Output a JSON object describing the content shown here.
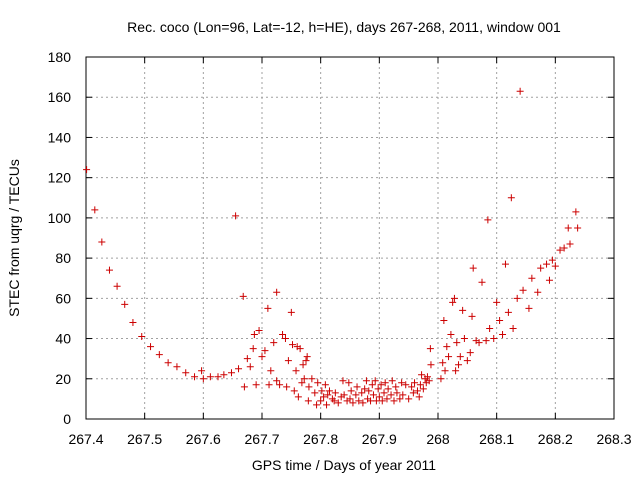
{
  "chart_data": {
    "type": "scatter",
    "title": "Rec. coco (Lon=96, Lat=-12, h=HE), days 267-268, 2011, window 001",
    "xlabel": "GPS time / Days of year 2011",
    "ylabel": "STEC from uqrg / TECUs",
    "xlim": [
      267.4,
      268.3
    ],
    "ylim": [
      0,
      180
    ],
    "xticks": [
      267.4,
      267.5,
      267.6,
      267.7,
      267.8,
      267.9,
      268,
      268.1,
      268.2,
      268.3
    ],
    "xtick_labels": [
      "267.4",
      "267.5",
      "267.6",
      "267.7",
      "267.8",
      "267.9",
      "268",
      "268.1",
      "268.2",
      "268.3"
    ],
    "yticks": [
      0,
      20,
      40,
      60,
      80,
      100,
      120,
      140,
      160,
      180
    ],
    "ytick_labels": [
      "0",
      "20",
      "40",
      "60",
      "80",
      "100",
      "120",
      "140",
      "160",
      "180"
    ],
    "grid": true,
    "marker": "+",
    "marker_color": "#cc0000",
    "points": [
      [
        267.401,
        124
      ],
      [
        267.415,
        104
      ],
      [
        267.427,
        88
      ],
      [
        267.44,
        74
      ],
      [
        267.453,
        66
      ],
      [
        267.466,
        57
      ],
      [
        267.48,
        48
      ],
      [
        267.495,
        41
      ],
      [
        267.51,
        36
      ],
      [
        267.525,
        32
      ],
      [
        267.54,
        28
      ],
      [
        267.555,
        26
      ],
      [
        267.57,
        23
      ],
      [
        267.585,
        21
      ],
      [
        267.597,
        24
      ],
      [
        267.6,
        20
      ],
      [
        267.612,
        21
      ],
      [
        267.625,
        21
      ],
      [
        267.635,
        22
      ],
      [
        267.648,
        23
      ],
      [
        267.655,
        101
      ],
      [
        267.66,
        25
      ],
      [
        267.668,
        61
      ],
      [
        267.67,
        16
      ],
      [
        267.675,
        30
      ],
      [
        267.68,
        26
      ],
      [
        267.685,
        35
      ],
      [
        267.687,
        42
      ],
      [
        267.69,
        17
      ],
      [
        267.695,
        44
      ],
      [
        267.7,
        31
      ],
      [
        267.705,
        34
      ],
      [
        267.71,
        55
      ],
      [
        267.712,
        17
      ],
      [
        267.715,
        24
      ],
      [
        267.72,
        38
      ],
      [
        267.725,
        63
      ],
      [
        267.725,
        19
      ],
      [
        267.73,
        17
      ],
      [
        267.735,
        42
      ],
      [
        267.74,
        40
      ],
      [
        267.742,
        16
      ],
      [
        267.745,
        29
      ],
      [
        267.75,
        53
      ],
      [
        267.752,
        37
      ],
      [
        267.755,
        14
      ],
      [
        267.758,
        24
      ],
      [
        267.76,
        36
      ],
      [
        267.762,
        11
      ],
      [
        267.765,
        35
      ],
      [
        267.768,
        18
      ],
      [
        267.77,
        27
      ],
      [
        267.772,
        20
      ],
      [
        267.775,
        29
      ],
      [
        267.777,
        31
      ],
      [
        267.779,
        9
      ],
      [
        267.78,
        16
      ],
      [
        267.785,
        20
      ],
      [
        267.79,
        13
      ],
      [
        267.793,
        7
      ],
      [
        267.795,
        18
      ],
      [
        267.8,
        9
      ],
      [
        267.802,
        14
      ],
      [
        267.805,
        11
      ],
      [
        267.808,
        17
      ],
      [
        267.81,
        7
      ],
      [
        267.812,
        12
      ],
      [
        267.815,
        14
      ],
      [
        267.82,
        10
      ],
      [
        267.823,
        9
      ],
      [
        267.825,
        13
      ],
      [
        267.83,
        8
      ],
      [
        267.835,
        11
      ],
      [
        267.838,
        19
      ],
      [
        267.84,
        12
      ],
      [
        267.845,
        9
      ],
      [
        267.848,
        18
      ],
      [
        267.85,
        10
      ],
      [
        267.852,
        14
      ],
      [
        267.855,
        8
      ],
      [
        267.86,
        12
      ],
      [
        267.862,
        16
      ],
      [
        267.865,
        9
      ],
      [
        267.87,
        13
      ],
      [
        267.872,
        8
      ],
      [
        267.875,
        15
      ],
      [
        267.878,
        19
      ],
      [
        267.88,
        10
      ],
      [
        267.882,
        14
      ],
      [
        267.885,
        9
      ],
      [
        267.888,
        17
      ],
      [
        267.89,
        12
      ],
      [
        267.893,
        19
      ],
      [
        267.895,
        9
      ],
      [
        267.898,
        15
      ],
      [
        267.9,
        11
      ],
      [
        267.903,
        17
      ],
      [
        267.905,
        9
      ],
      [
        267.908,
        13
      ],
      [
        267.91,
        18
      ],
      [
        267.913,
        10
      ],
      [
        267.915,
        15
      ],
      [
        267.92,
        12
      ],
      [
        267.922,
        19
      ],
      [
        267.925,
        9
      ],
      [
        267.928,
        16
      ],
      [
        267.93,
        13
      ],
      [
        267.935,
        10
      ],
      [
        267.938,
        18
      ],
      [
        267.94,
        12
      ],
      [
        267.945,
        17
      ],
      [
        267.95,
        10
      ],
      [
        267.955,
        16
      ],
      [
        267.958,
        13
      ],
      [
        267.96,
        18
      ],
      [
        267.965,
        14
      ],
      [
        267.968,
        11
      ],
      [
        267.97,
        17
      ],
      [
        267.972,
        22
      ],
      [
        267.975,
        15
      ],
      [
        267.978,
        20
      ],
      [
        267.98,
        18
      ],
      [
        267.982,
        21
      ],
      [
        267.985,
        19
      ],
      [
        267.987,
        35
      ],
      [
        267.988,
        27
      ],
      [
        268.005,
        20
      ],
      [
        268.008,
        28
      ],
      [
        268.01,
        49
      ],
      [
        268.012,
        24
      ],
      [
        268.015,
        36
      ],
      [
        268.018,
        31
      ],
      [
        268.022,
        42
      ],
      [
        268.025,
        58
      ],
      [
        268.028,
        60
      ],
      [
        268.03,
        24
      ],
      [
        268.032,
        38
      ],
      [
        268.035,
        27
      ],
      [
        268.038,
        31
      ],
      [
        268.042,
        54
      ],
      [
        268.045,
        40
      ],
      [
        268.05,
        29
      ],
      [
        268.055,
        33
      ],
      [
        268.058,
        51
      ],
      [
        268.06,
        75
      ],
      [
        268.065,
        39
      ],
      [
        268.07,
        38
      ],
      [
        268.075,
        68
      ],
      [
        268.082,
        39
      ],
      [
        268.085,
        99
      ],
      [
        268.088,
        45
      ],
      [
        268.095,
        40
      ],
      [
        268.1,
        58
      ],
      [
        268.105,
        49
      ],
      [
        268.11,
        42
      ],
      [
        268.115,
        77
      ],
      [
        268.12,
        53
      ],
      [
        268.125,
        110
      ],
      [
        268.128,
        45
      ],
      [
        268.135,
        60
      ],
      [
        268.14,
        163
      ],
      [
        268.145,
        64
      ],
      [
        268.155,
        55
      ],
      [
        268.16,
        70
      ],
      [
        268.17,
        63
      ],
      [
        268.175,
        75
      ],
      [
        268.185,
        77
      ],
      [
        268.19,
        69
      ],
      [
        268.195,
        79
      ],
      [
        268.2,
        76
      ],
      [
        268.208,
        84
      ],
      [
        268.215,
        85
      ],
      [
        268.222,
        95
      ],
      [
        268.225,
        87
      ],
      [
        268.235,
        103
      ],
      [
        268.238,
        95
      ]
    ]
  }
}
